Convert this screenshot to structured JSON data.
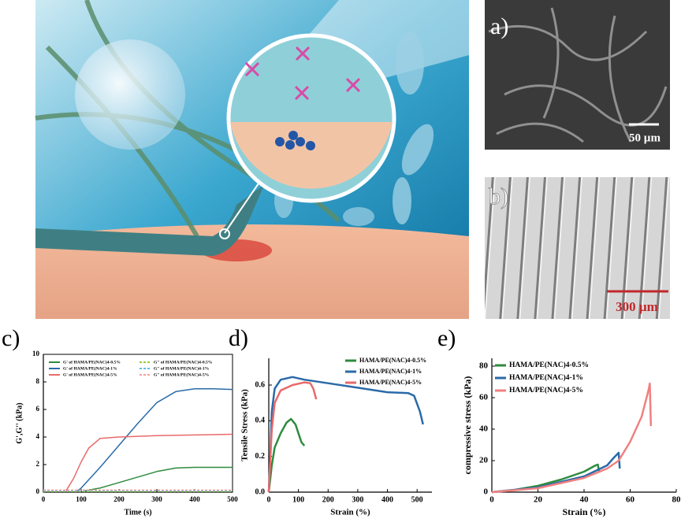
{
  "figure": {
    "panel_a": {
      "label": "a)",
      "scale_bar": "50 µm"
    },
    "panel_b": {
      "label": "b)",
      "scale_bar": "300 µm"
    },
    "panel_c": {
      "label": "c)"
    },
    "panel_d": {
      "label": "d)"
    },
    "panel_e": {
      "label": "e)"
    }
  },
  "chart_data": [
    {
      "type": "line",
      "xlabel": "Time (s)",
      "ylabel": "G',G'' (kPa)",
      "xlim": [
        0,
        500
      ],
      "xticks": [
        0,
        100,
        200,
        300,
        400,
        500
      ],
      "ylim": [
        0,
        10
      ],
      "yticks": [
        0,
        2,
        4,
        6,
        8,
        10
      ],
      "legend": "upper left",
      "series": [
        {
          "name": "G' of HAMA/PE(NAC)4-0.5%",
          "color": "#2e8b3e",
          "linestyle": "solid",
          "x": [
            110,
            150,
            200,
            250,
            300,
            350,
            400,
            450,
            500
          ],
          "values": [
            0.1,
            0.3,
            0.7,
            1.1,
            1.5,
            1.75,
            1.8,
            1.8,
            1.8
          ]
        },
        {
          "name": "G' of HAMA/PE(NAC)4-1%",
          "color": "#2a6aa8",
          "linestyle": "solid",
          "x": [
            90,
            100,
            150,
            200,
            250,
            300,
            350,
            400,
            450,
            500
          ],
          "values": [
            0.1,
            0.3,
            1.8,
            3.4,
            5,
            6.5,
            7.3,
            7.5,
            7.5,
            7.45
          ]
        },
        {
          "name": "G' of HAMA/PE(NAC)4-5%",
          "color": "#e86a6a",
          "linestyle": "solid",
          "x": [
            60,
            80,
            100,
            120,
            150,
            200,
            300,
            400,
            500
          ],
          "values": [
            0.1,
            1,
            2.2,
            3.2,
            3.9,
            4.0,
            4.1,
            4.15,
            4.2
          ]
        },
        {
          "name": "G'' of HAMA/PE(NAC)4-0.5%",
          "color": "#9acd32",
          "linestyle": "dashed",
          "x": [
            0,
            500
          ],
          "values": [
            0.05,
            0.05
          ]
        },
        {
          "name": "G'' of HAMA/PE(NAC)4-1%",
          "color": "#5bc0de",
          "linestyle": "dashed",
          "x": [
            0,
            500
          ],
          "values": [
            0.1,
            0.1
          ]
        },
        {
          "name": "G'' of HAMA/PE(NAC)4-5%",
          "color": "#f4a0a0",
          "linestyle": "dashed",
          "x": [
            0,
            500
          ],
          "values": [
            0.15,
            0.15
          ]
        }
      ]
    },
    {
      "type": "line",
      "xlabel": "Strain (%)",
      "ylabel": "Tensile Stress (kPa)",
      "xlim": [
        0,
        550
      ],
      "xticks": [
        0,
        100,
        200,
        300,
        400,
        500
      ],
      "ylim": [
        0,
        0.75
      ],
      "yticks": [
        {
          "value": 0,
          "label": "0.0"
        },
        0.2,
        0.4,
        0.6
      ],
      "legend": "upper right",
      "series": [
        {
          "name": "HAMA/PE(NAC)4-0.5%",
          "color": "#2e8b3e",
          "linestyle": "solid",
          "x": [
            0,
            10,
            20,
            40,
            60,
            75,
            90,
            100,
            110,
            120
          ],
          "values": [
            0,
            0.15,
            0.25,
            0.33,
            0.39,
            0.41,
            0.38,
            0.33,
            0.28,
            0.26
          ]
        },
        {
          "name": "HAMA/PE(NAC)4-1%",
          "color": "#2a6aa8",
          "linestyle": "solid",
          "x": [
            0,
            5,
            10,
            20,
            40,
            80,
            120,
            200,
            300,
            400,
            470,
            490,
            510,
            520
          ],
          "values": [
            0,
            0.2,
            0.45,
            0.58,
            0.63,
            0.645,
            0.63,
            0.61,
            0.585,
            0.56,
            0.555,
            0.54,
            0.45,
            0.38
          ]
        },
        {
          "name": "HAMA/PE(NAC)4-5%",
          "color": "#e86a6a",
          "linestyle": "solid",
          "x": [
            0,
            10,
            20,
            40,
            80,
            120,
            140,
            150,
            160
          ],
          "values": [
            0,
            0.35,
            0.5,
            0.57,
            0.6,
            0.615,
            0.61,
            0.58,
            0.52
          ]
        }
      ]
    },
    {
      "type": "line",
      "xlabel": "Strain (%)",
      "ylabel": "compressive stress (kPa)",
      "xlim": [
        0,
        80
      ],
      "xticks": [
        0,
        20,
        40,
        60,
        80
      ],
      "ylim": [
        0,
        85
      ],
      "yticks": [
        0,
        20,
        40,
        60,
        80
      ],
      "legend": "upper left",
      "series": [
        {
          "name": "HAMA/PE(NAC)4-0.5%",
          "color": "#2e8b3e",
          "linestyle": "solid",
          "x": [
            0,
            10,
            20,
            30,
            40,
            45,
            46,
            46.5
          ],
          "values": [
            0,
            1.5,
            4,
            8,
            13,
            17,
            17.5,
            13
          ]
        },
        {
          "name": "HAMA/PE(NAC)4-1%",
          "color": "#2a6aa8",
          "linestyle": "solid",
          "x": [
            0,
            20,
            40,
            50,
            53,
            55,
            55.5
          ],
          "values": [
            0,
            3,
            10,
            17,
            22,
            25,
            15
          ]
        },
        {
          "name": "HAMA/PE(NAC)4-5%",
          "color": "#f08080",
          "linestyle": "solid",
          "x": [
            0,
            20,
            40,
            50,
            55,
            60,
            65,
            68,
            68.5,
            69
          ],
          "values": [
            0,
            2.5,
            9,
            15,
            20,
            32,
            48,
            65,
            69,
            42
          ]
        }
      ]
    }
  ]
}
